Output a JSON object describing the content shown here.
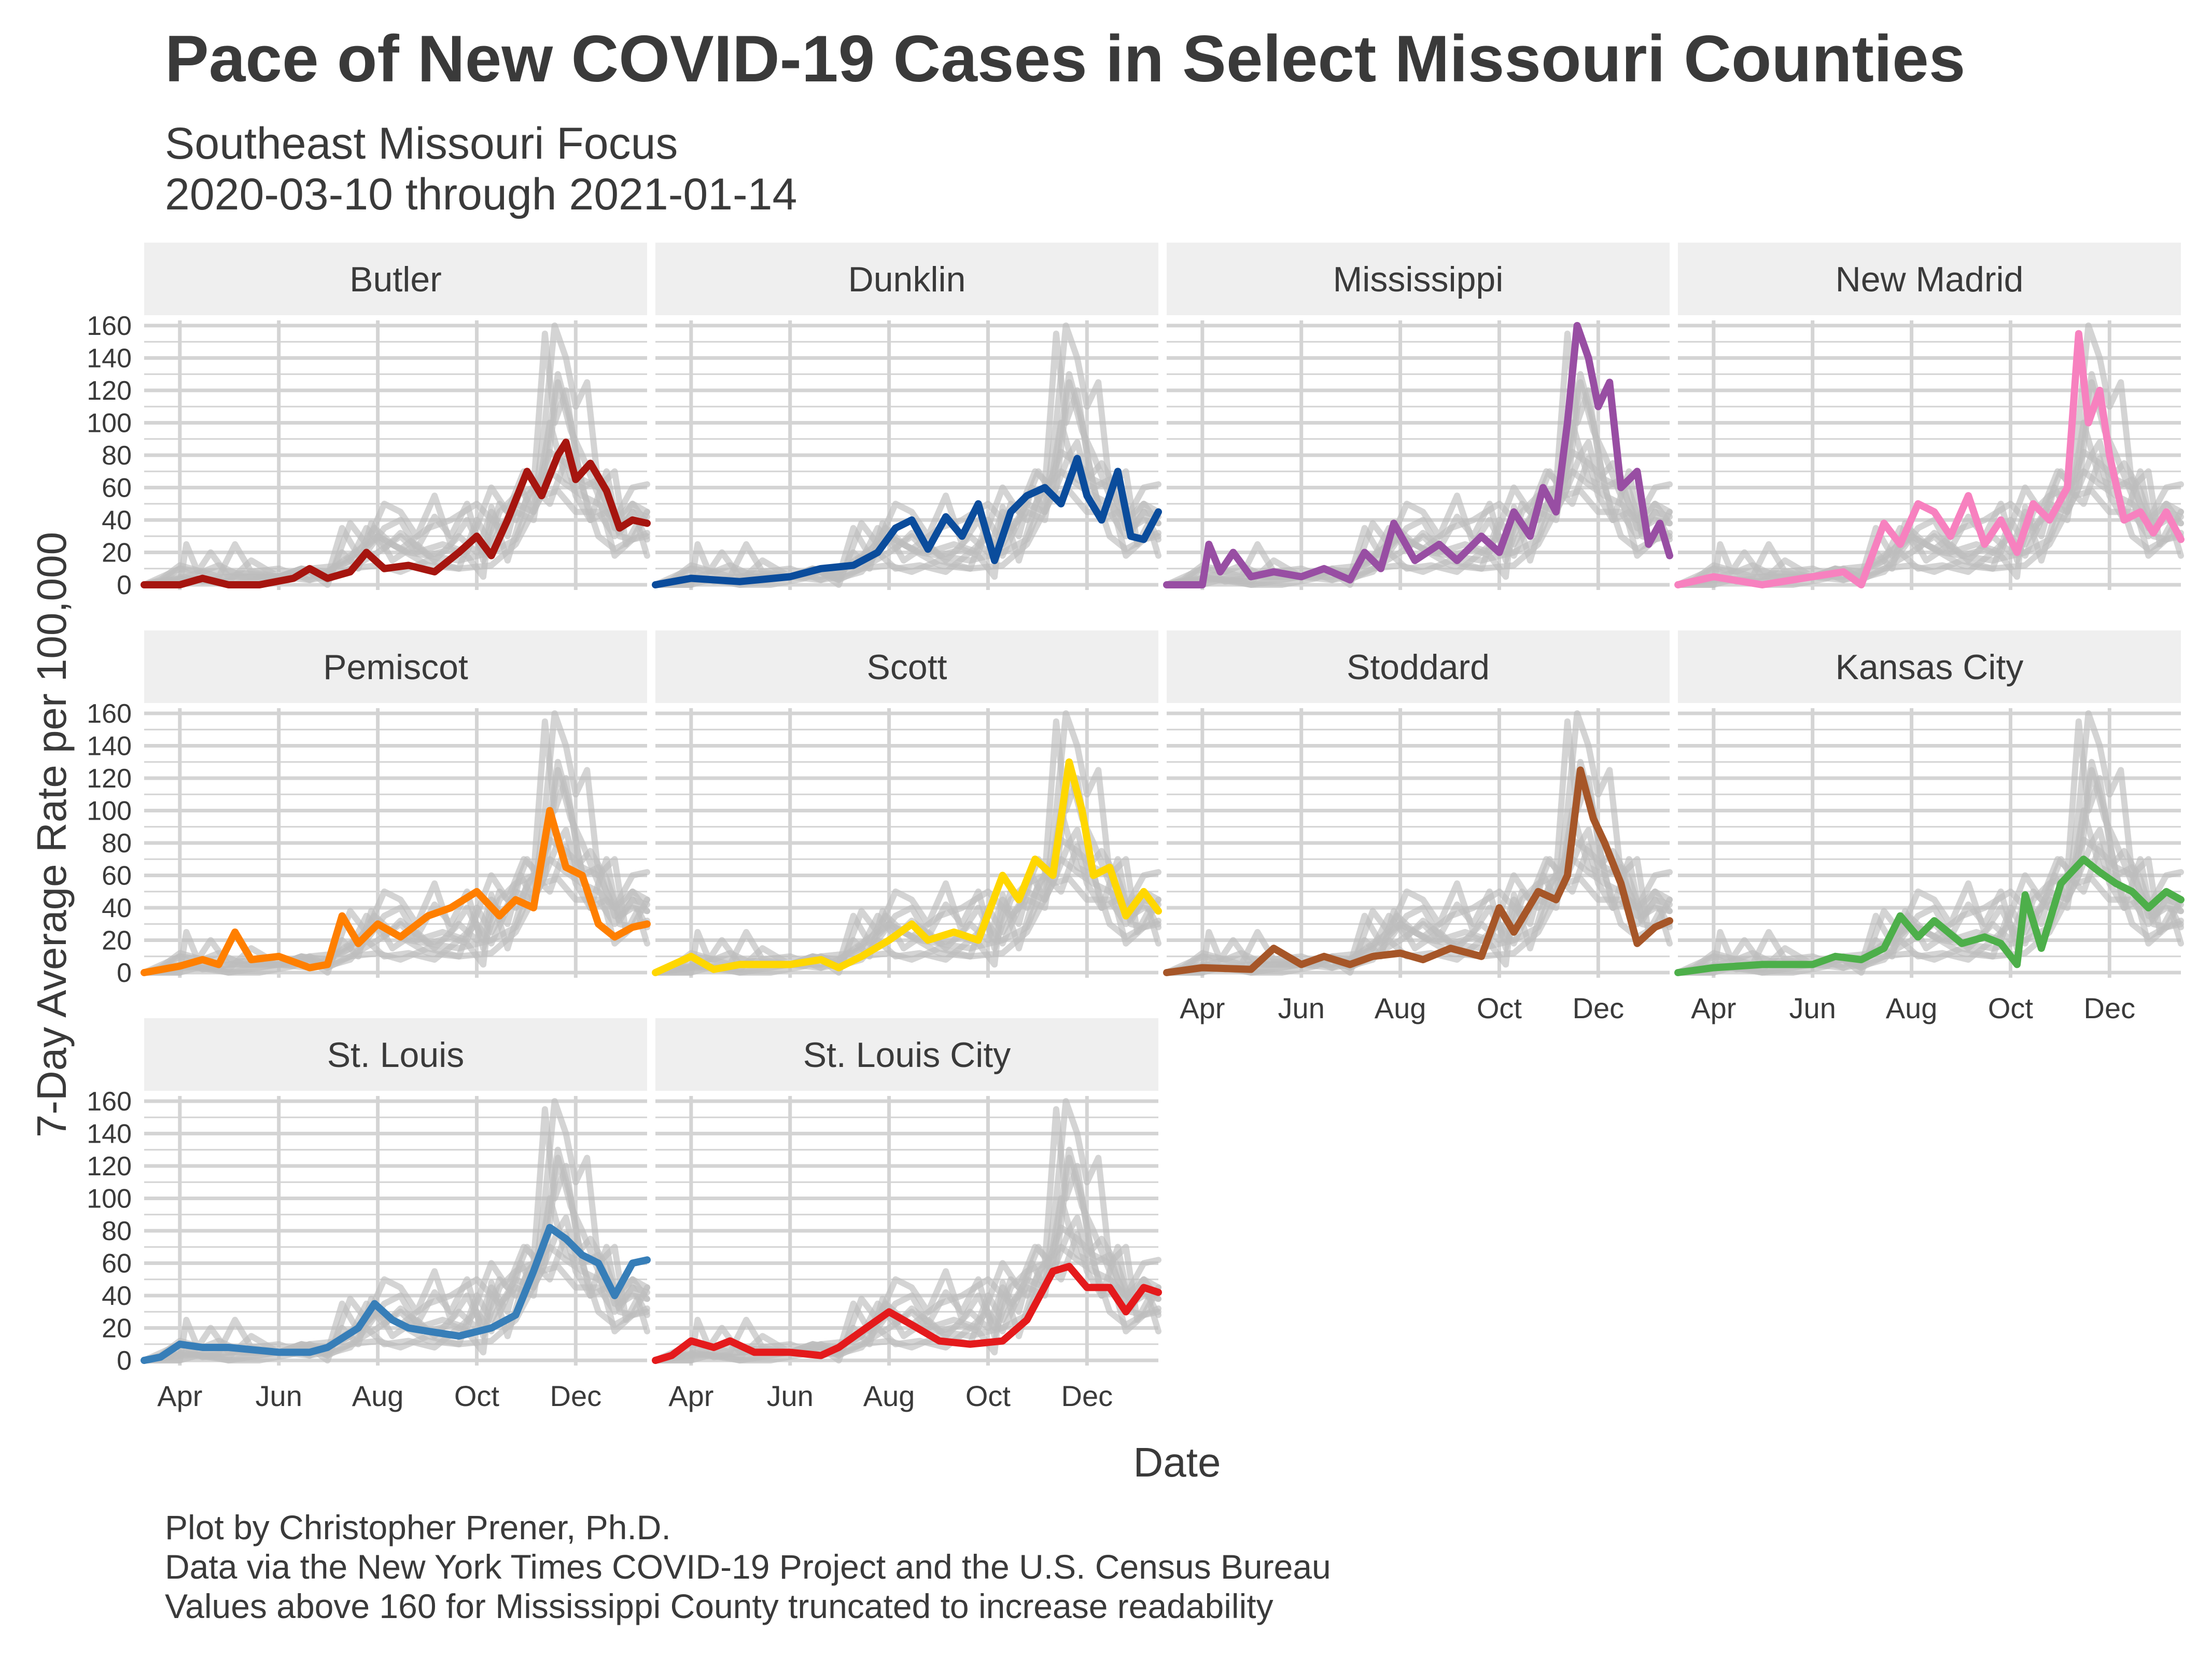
{
  "header": {
    "title": "Pace of New COVID-19 Cases in Select Missouri Counties",
    "subtitle_1": "Southeast Missouri Focus",
    "subtitle_2": "2020-03-10 through 2021-01-14"
  },
  "caption": {
    "line_1": "Plot by Christopher Prener, Ph.D.",
    "line_2": "Data via the New York Times COVID-19 Project and the U.S. Census Bureau",
    "line_3": "Values above 160 for Mississippi County truncated to increase readability"
  },
  "chart_data": {
    "type": "line",
    "title": "Pace of New COVID-19 Cases in Select Missouri Counties",
    "xlabel": "Date",
    "ylabel": "7-Day Average Rate per 100,000",
    "x_ticks": [
      "Apr",
      "Jun",
      "Aug",
      "Oct",
      "Dec"
    ],
    "y_ticks": [
      "0",
      "20",
      "40",
      "60",
      "80",
      "100",
      "120",
      "140",
      "160"
    ],
    "ylim": [
      0,
      160
    ],
    "xlim": [
      "2020-03-10",
      "2021-01-14"
    ],
    "grid": true,
    "background_color": "#bdbdbd",
    "panels": [
      {
        "name": "Butler",
        "color": "#a6150f",
        "points": [
          [
            "2020-03-10",
            0
          ],
          [
            "2020-04-01",
            0
          ],
          [
            "2020-04-15",
            4
          ],
          [
            "2020-05-01",
            0
          ],
          [
            "2020-05-20",
            0
          ],
          [
            "2020-06-10",
            4
          ],
          [
            "2020-06-20",
            10
          ],
          [
            "2020-07-01",
            4
          ],
          [
            "2020-07-15",
            8
          ],
          [
            "2020-07-25",
            20
          ],
          [
            "2020-08-05",
            10
          ],
          [
            "2020-08-20",
            12
          ],
          [
            "2020-09-05",
            8
          ],
          [
            "2020-09-20",
            20
          ],
          [
            "2020-10-01",
            30
          ],
          [
            "2020-10-10",
            18
          ],
          [
            "2020-10-20",
            40
          ],
          [
            "2020-11-01",
            70
          ],
          [
            "2020-11-10",
            55
          ],
          [
            "2020-11-20",
            80
          ],
          [
            "2020-11-25",
            88
          ],
          [
            "2020-12-01",
            65
          ],
          [
            "2020-12-10",
            75
          ],
          [
            "2020-12-20",
            58
          ],
          [
            "2020-12-28",
            35
          ],
          [
            "2021-01-05",
            40
          ],
          [
            "2021-01-14",
            38
          ]
        ]
      },
      {
        "name": "Dunklin",
        "color": "#0a4c9c",
        "points": [
          [
            "2020-03-10",
            0
          ],
          [
            "2020-04-01",
            4
          ],
          [
            "2020-05-01",
            2
          ],
          [
            "2020-06-01",
            5
          ],
          [
            "2020-06-20",
            10
          ],
          [
            "2020-07-10",
            12
          ],
          [
            "2020-07-25",
            20
          ],
          [
            "2020-08-05",
            35
          ],
          [
            "2020-08-15",
            40
          ],
          [
            "2020-08-25",
            22
          ],
          [
            "2020-09-05",
            42
          ],
          [
            "2020-09-15",
            30
          ],
          [
            "2020-09-25",
            50
          ],
          [
            "2020-10-05",
            15
          ],
          [
            "2020-10-15",
            45
          ],
          [
            "2020-10-25",
            55
          ],
          [
            "2020-11-05",
            60
          ],
          [
            "2020-11-15",
            50
          ],
          [
            "2020-11-25",
            78
          ],
          [
            "2020-12-01",
            55
          ],
          [
            "2020-12-10",
            40
          ],
          [
            "2020-12-20",
            70
          ],
          [
            "2020-12-28",
            30
          ],
          [
            "2021-01-05",
            28
          ],
          [
            "2021-01-14",
            45
          ]
        ]
      },
      {
        "name": "Mississippi",
        "color": "#984ea3",
        "points": [
          [
            "2020-03-10",
            0
          ],
          [
            "2020-04-01",
            0
          ],
          [
            "2020-04-05",
            25
          ],
          [
            "2020-04-12",
            8
          ],
          [
            "2020-04-20",
            20
          ],
          [
            "2020-05-01",
            5
          ],
          [
            "2020-05-15",
            8
          ],
          [
            "2020-06-01",
            5
          ],
          [
            "2020-06-15",
            10
          ],
          [
            "2020-07-01",
            3
          ],
          [
            "2020-07-10",
            20
          ],
          [
            "2020-07-20",
            10
          ],
          [
            "2020-07-28",
            38
          ],
          [
            "2020-08-10",
            15
          ],
          [
            "2020-08-25",
            25
          ],
          [
            "2020-09-05",
            15
          ],
          [
            "2020-09-20",
            30
          ],
          [
            "2020-10-01",
            20
          ],
          [
            "2020-10-10",
            45
          ],
          [
            "2020-10-20",
            30
          ],
          [
            "2020-10-28",
            60
          ],
          [
            "2020-11-05",
            45
          ],
          [
            "2020-11-12",
            100
          ],
          [
            "2020-11-18",
            160
          ],
          [
            "2020-11-25",
            140
          ],
          [
            "2020-12-01",
            110
          ],
          [
            "2020-12-08",
            125
          ],
          [
            "2020-12-15",
            60
          ],
          [
            "2020-12-25",
            70
          ],
          [
            "2021-01-01",
            25
          ],
          [
            "2021-01-08",
            38
          ],
          [
            "2021-01-14",
            18
          ]
        ]
      },
      {
        "name": "New Madrid",
        "color": "#f781bf",
        "points": [
          [
            "2020-03-10",
            0
          ],
          [
            "2020-04-01",
            5
          ],
          [
            "2020-05-01",
            0
          ],
          [
            "2020-06-01",
            5
          ],
          [
            "2020-06-20",
            8
          ],
          [
            "2020-07-01",
            0
          ],
          [
            "2020-07-15",
            38
          ],
          [
            "2020-07-25",
            25
          ],
          [
            "2020-08-05",
            50
          ],
          [
            "2020-08-15",
            45
          ],
          [
            "2020-08-25",
            30
          ],
          [
            "2020-09-05",
            55
          ],
          [
            "2020-09-15",
            25
          ],
          [
            "2020-09-25",
            40
          ],
          [
            "2020-10-05",
            20
          ],
          [
            "2020-10-15",
            50
          ],
          [
            "2020-10-25",
            40
          ],
          [
            "2020-11-05",
            60
          ],
          [
            "2020-11-12",
            155
          ],
          [
            "2020-11-18",
            100
          ],
          [
            "2020-11-25",
            120
          ],
          [
            "2020-12-01",
            80
          ],
          [
            "2020-12-10",
            40
          ],
          [
            "2020-12-20",
            45
          ],
          [
            "2020-12-28",
            32
          ],
          [
            "2021-01-05",
            45
          ],
          [
            "2021-01-14",
            28
          ]
        ]
      },
      {
        "name": "Pemiscot",
        "color": "#ff7f00",
        "points": [
          [
            "2020-03-10",
            0
          ],
          [
            "2020-04-01",
            4
          ],
          [
            "2020-04-15",
            8
          ],
          [
            "2020-04-25",
            5
          ],
          [
            "2020-05-05",
            25
          ],
          [
            "2020-05-15",
            8
          ],
          [
            "2020-06-01",
            10
          ],
          [
            "2020-06-20",
            3
          ],
          [
            "2020-07-01",
            5
          ],
          [
            "2020-07-10",
            35
          ],
          [
            "2020-07-20",
            18
          ],
          [
            "2020-08-01",
            30
          ],
          [
            "2020-08-15",
            22
          ],
          [
            "2020-09-01",
            35
          ],
          [
            "2020-09-15",
            40
          ],
          [
            "2020-10-01",
            50
          ],
          [
            "2020-10-15",
            35
          ],
          [
            "2020-10-25",
            45
          ],
          [
            "2020-11-05",
            40
          ],
          [
            "2020-11-15",
            100
          ],
          [
            "2020-11-25",
            65
          ],
          [
            "2020-12-05",
            60
          ],
          [
            "2020-12-15",
            30
          ],
          [
            "2020-12-25",
            22
          ],
          [
            "2021-01-05",
            28
          ],
          [
            "2021-01-14",
            30
          ]
        ]
      },
      {
        "name": "Scott",
        "color": "#ffd700",
        "points": [
          [
            "2020-03-10",
            0
          ],
          [
            "2020-04-01",
            10
          ],
          [
            "2020-04-15",
            2
          ],
          [
            "2020-05-01",
            5
          ],
          [
            "2020-06-01",
            5
          ],
          [
            "2020-06-20",
            8
          ],
          [
            "2020-07-01",
            3
          ],
          [
            "2020-07-15",
            10
          ],
          [
            "2020-08-01",
            20
          ],
          [
            "2020-08-15",
            30
          ],
          [
            "2020-08-25",
            20
          ],
          [
            "2020-09-10",
            25
          ],
          [
            "2020-09-25",
            20
          ],
          [
            "2020-10-10",
            60
          ],
          [
            "2020-10-20",
            45
          ],
          [
            "2020-10-30",
            70
          ],
          [
            "2020-11-10",
            60
          ],
          [
            "2020-11-20",
            130
          ],
          [
            "2020-11-28",
            100
          ],
          [
            "2020-12-05",
            60
          ],
          [
            "2020-12-15",
            65
          ],
          [
            "2020-12-25",
            35
          ],
          [
            "2021-01-05",
            50
          ],
          [
            "2021-01-14",
            38
          ]
        ]
      },
      {
        "name": "Stoddard",
        "color": "#a65628",
        "points": [
          [
            "2020-03-10",
            0
          ],
          [
            "2020-04-01",
            3
          ],
          [
            "2020-05-01",
            2
          ],
          [
            "2020-05-15",
            15
          ],
          [
            "2020-06-01",
            5
          ],
          [
            "2020-06-15",
            10
          ],
          [
            "2020-07-01",
            5
          ],
          [
            "2020-07-15",
            10
          ],
          [
            "2020-08-01",
            12
          ],
          [
            "2020-08-15",
            8
          ],
          [
            "2020-09-01",
            15
          ],
          [
            "2020-09-20",
            10
          ],
          [
            "2020-10-01",
            40
          ],
          [
            "2020-10-10",
            25
          ],
          [
            "2020-10-25",
            50
          ],
          [
            "2020-11-05",
            45
          ],
          [
            "2020-11-12",
            60
          ],
          [
            "2020-11-20",
            125
          ],
          [
            "2020-11-28",
            95
          ],
          [
            "2020-12-05",
            80
          ],
          [
            "2020-12-15",
            55
          ],
          [
            "2020-12-25",
            18
          ],
          [
            "2021-01-05",
            28
          ],
          [
            "2021-01-14",
            32
          ]
        ]
      },
      {
        "name": "Kansas City",
        "color": "#4daf4a",
        "points": [
          [
            "2020-03-10",
            0
          ],
          [
            "2020-04-01",
            3
          ],
          [
            "2020-05-01",
            5
          ],
          [
            "2020-06-01",
            5
          ],
          [
            "2020-06-15",
            10
          ],
          [
            "2020-07-01",
            8
          ],
          [
            "2020-07-15",
            15
          ],
          [
            "2020-07-25",
            35
          ],
          [
            "2020-08-05",
            22
          ],
          [
            "2020-08-15",
            32
          ],
          [
            "2020-09-01",
            18
          ],
          [
            "2020-09-15",
            22
          ],
          [
            "2020-09-25",
            18
          ],
          [
            "2020-10-05",
            5
          ],
          [
            "2020-10-10",
            48
          ],
          [
            "2020-10-20",
            15
          ],
          [
            "2020-11-01",
            55
          ],
          [
            "2020-11-15",
            70
          ],
          [
            "2020-11-25",
            62
          ],
          [
            "2020-12-05",
            55
          ],
          [
            "2020-12-15",
            50
          ],
          [
            "2020-12-25",
            40
          ],
          [
            "2021-01-05",
            50
          ],
          [
            "2021-01-14",
            45
          ]
        ]
      },
      {
        "name": "St. Louis",
        "color": "#377eb8",
        "points": [
          [
            "2020-03-10",
            0
          ],
          [
            "2020-03-20",
            2
          ],
          [
            "2020-04-01",
            10
          ],
          [
            "2020-04-15",
            8
          ],
          [
            "2020-05-01",
            8
          ],
          [
            "2020-06-01",
            5
          ],
          [
            "2020-06-20",
            5
          ],
          [
            "2020-07-01",
            8
          ],
          [
            "2020-07-20",
            20
          ],
          [
            "2020-07-30",
            35
          ],
          [
            "2020-08-10",
            25
          ],
          [
            "2020-08-20",
            20
          ],
          [
            "2020-09-01",
            18
          ],
          [
            "2020-09-20",
            15
          ],
          [
            "2020-10-10",
            20
          ],
          [
            "2020-10-25",
            28
          ],
          [
            "2020-11-05",
            55
          ],
          [
            "2020-11-15",
            82
          ],
          [
            "2020-11-25",
            75
          ],
          [
            "2020-12-05",
            65
          ],
          [
            "2020-12-15",
            60
          ],
          [
            "2020-12-25",
            40
          ],
          [
            "2021-01-05",
            60
          ],
          [
            "2021-01-14",
            62
          ]
        ]
      },
      {
        "name": "St. Louis City",
        "color": "#e41a1c",
        "points": [
          [
            "2020-03-10",
            0
          ],
          [
            "2020-03-20",
            3
          ],
          [
            "2020-04-01",
            12
          ],
          [
            "2020-04-15",
            8
          ],
          [
            "2020-04-25",
            12
          ],
          [
            "2020-05-10",
            5
          ],
          [
            "2020-06-01",
            5
          ],
          [
            "2020-06-20",
            3
          ],
          [
            "2020-07-01",
            8
          ],
          [
            "2020-07-15",
            18
          ],
          [
            "2020-08-01",
            30
          ],
          [
            "2020-08-15",
            22
          ],
          [
            "2020-09-01",
            12
          ],
          [
            "2020-09-20",
            10
          ],
          [
            "2020-10-10",
            12
          ],
          [
            "2020-10-25",
            25
          ],
          [
            "2020-11-10",
            55
          ],
          [
            "2020-11-20",
            58
          ],
          [
            "2020-12-01",
            45
          ],
          [
            "2020-12-15",
            45
          ],
          [
            "2020-12-25",
            30
          ],
          [
            "2021-01-05",
            45
          ],
          [
            "2021-01-14",
            42
          ]
        ]
      }
    ]
  }
}
